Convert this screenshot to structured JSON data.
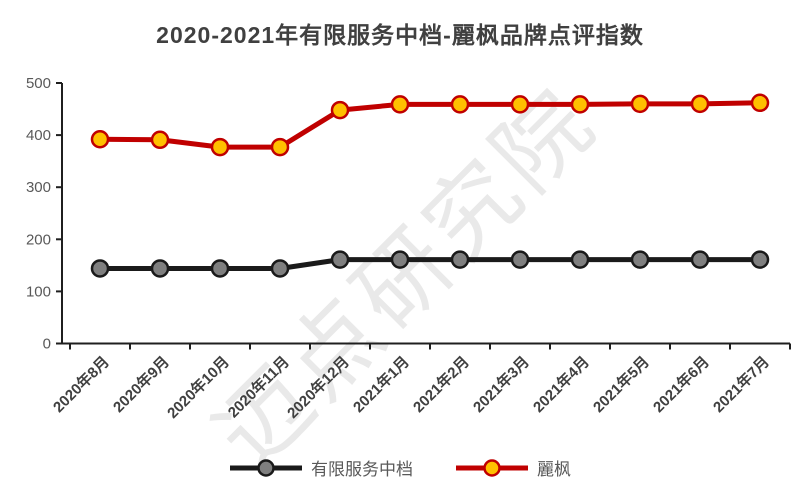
{
  "watermark": {
    "text": "迈点研究院"
  },
  "chart_data": {
    "type": "line",
    "title": "2020-2021年有限服务中档-麗枫品牌点评指数",
    "categories": [
      "2020年8月",
      "2020年9月",
      "2020年10月",
      "2020年11月",
      "2020年12月",
      "2021年1月",
      "2021年2月",
      "2021年3月",
      "2021年4月",
      "2021年5月",
      "2021年6月",
      "2021年7月"
    ],
    "series": [
      {
        "name": "有限服务中档",
        "line_color": "#1a1a1a",
        "marker_fill": "#7f7f7f",
        "marker_stroke": "#1a1a1a",
        "values": [
          144,
          144,
          144,
          144,
          161,
          161,
          161,
          161,
          161,
          161,
          161,
          161
        ]
      },
      {
        "name": "麗枫",
        "line_color": "#c00000",
        "marker_fill": "#ffc000",
        "marker_stroke": "#c00000",
        "values": [
          392,
          391,
          377,
          377,
          448,
          459,
          459,
          459,
          459,
          460,
          460,
          462
        ]
      }
    ],
    "ylim": [
      0,
      500
    ],
    "yticks": [
      0,
      100,
      200,
      300,
      400,
      500
    ],
    "grid": false,
    "legend_position": "bottom",
    "axis_color": "#1f1f1f",
    "tick_label_color": "#595959",
    "x_label_color": "#404040"
  }
}
